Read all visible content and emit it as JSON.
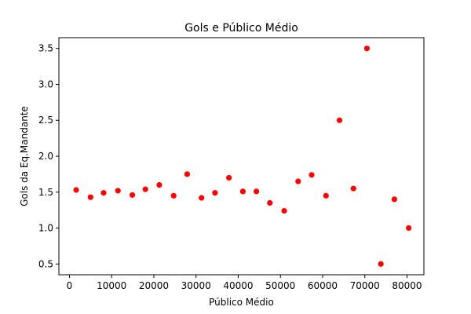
{
  "chart_data": {
    "type": "scatter",
    "title": "Gols e Público Médio",
    "xlabel": "Público Médio",
    "ylabel": "Gols da Eq.Mandante",
    "xlim": [
      -2500,
      84000
    ],
    "ylim": [
      0.35,
      3.65
    ],
    "xticks": [
      0,
      10000,
      20000,
      30000,
      40000,
      50000,
      60000,
      70000,
      80000
    ],
    "xtick_labels": [
      "0",
      "10000",
      "20000",
      "30000",
      "40000",
      "50000",
      "60000",
      "70000",
      "80000"
    ],
    "yticks": [
      0.5,
      1.0,
      1.5,
      2.0,
      2.5,
      3.0,
      3.5
    ],
    "ytick_labels": [
      "0.5",
      "1.0",
      "1.5",
      "2.0",
      "2.5",
      "3.0",
      "3.5"
    ],
    "grid": false,
    "marker_color": "#ff0000",
    "points": [
      {
        "x": 1600,
        "y": 1.53
      },
      {
        "x": 5000,
        "y": 1.43
      },
      {
        "x": 8100,
        "y": 1.49
      },
      {
        "x": 11500,
        "y": 1.52
      },
      {
        "x": 14900,
        "y": 1.46
      },
      {
        "x": 18000,
        "y": 1.54
      },
      {
        "x": 21300,
        "y": 1.6
      },
      {
        "x": 24700,
        "y": 1.45
      },
      {
        "x": 27900,
        "y": 1.75
      },
      {
        "x": 31300,
        "y": 1.42
      },
      {
        "x": 34500,
        "y": 1.49
      },
      {
        "x": 37800,
        "y": 1.7
      },
      {
        "x": 41100,
        "y": 1.51
      },
      {
        "x": 44300,
        "y": 1.51
      },
      {
        "x": 47500,
        "y": 1.35
      },
      {
        "x": 50900,
        "y": 1.24
      },
      {
        "x": 54200,
        "y": 1.65
      },
      {
        "x": 57400,
        "y": 1.74
      },
      {
        "x": 60800,
        "y": 1.45
      },
      {
        "x": 64000,
        "y": 2.5
      },
      {
        "x": 67300,
        "y": 1.55
      },
      {
        "x": 70500,
        "y": 3.5
      },
      {
        "x": 73800,
        "y": 0.5
      },
      {
        "x": 77000,
        "y": 1.4
      },
      {
        "x": 80400,
        "y": 1.0
      }
    ]
  }
}
